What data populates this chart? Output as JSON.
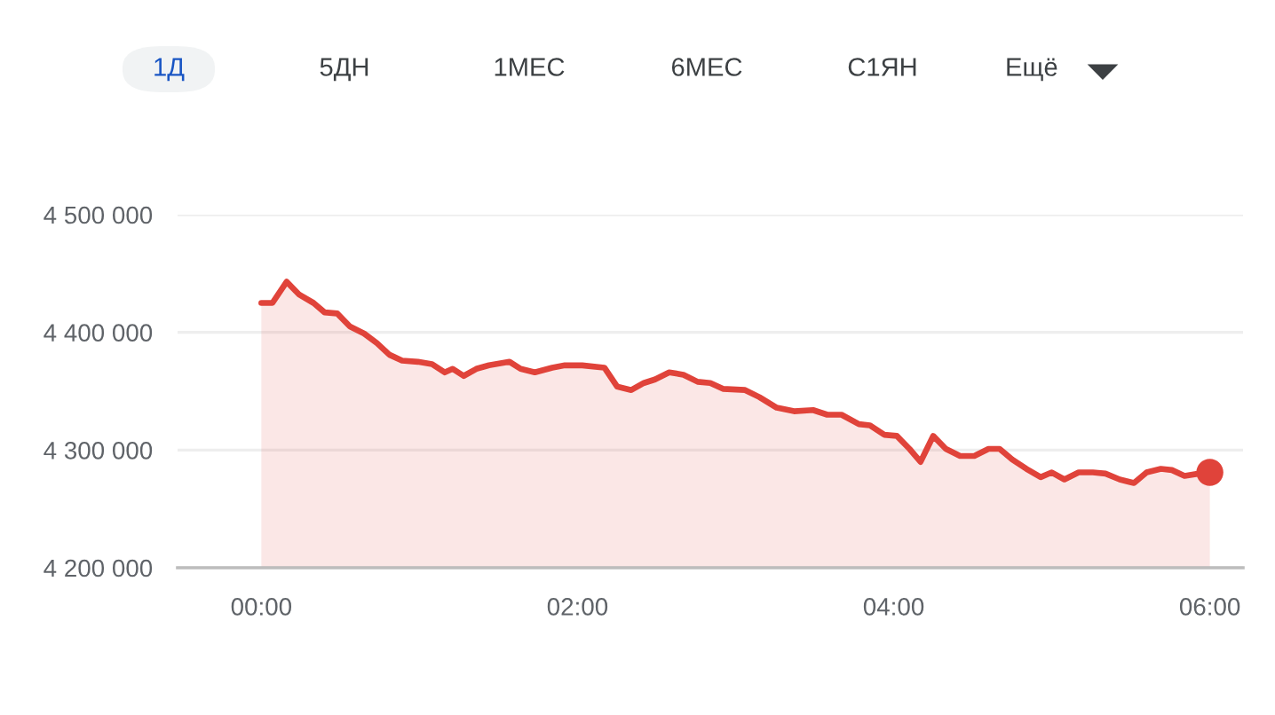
{
  "chart_data": {
    "type": "area",
    "annotations": [
      "1Д",
      "5ДН",
      "1МЕС",
      "6МЕС",
      "С1ЯН",
      "Ещё"
    ],
    "series": [
      {
        "color": "#e0433a",
        "x": [
          0,
          0.07,
          0.16,
          0.24,
          0.33,
          0.4,
          0.48,
          0.56,
          0.65,
          0.73,
          0.81,
          0.89,
          0.99,
          1.08,
          1.16,
          1.21,
          1.28,
          1.36,
          1.44,
          1.57,
          1.64,
          1.73,
          1.84,
          1.92,
          2.03,
          2.17,
          2.25,
          2.34,
          2.42,
          2.49,
          2.58,
          2.67,
          2.76,
          2.84,
          2.92,
          3.06,
          3.15,
          3.26,
          3.37,
          3.49,
          3.58,
          3.67,
          3.78,
          3.85,
          3.94,
          4.02,
          4.1,
          4.17,
          4.25,
          4.33,
          4.42,
          4.51,
          4.6,
          4.67,
          4.75,
          4.84,
          4.93,
          5.0,
          5.08,
          5.17,
          5.26,
          5.34,
          5.43,
          5.52,
          5.6,
          5.69,
          5.76,
          5.84,
          5.93,
          6.0
        ],
        "values": [
          4425000,
          4425000,
          4443000,
          4432000,
          4425000,
          4417000,
          4416000,
          4405000,
          4399000,
          4391000,
          4381000,
          4376000,
          4375000,
          4373000,
          4366000,
          4369000,
          4363000,
          4369000,
          4372000,
          4375000,
          4369000,
          4366000,
          4370000,
          4372000,
          4372000,
          4370000,
          4354000,
          4351000,
          4357000,
          4360000,
          4366000,
          4364000,
          4358000,
          4357000,
          4352000,
          4351000,
          4345000,
          4336000,
          4333000,
          4334000,
          4330000,
          4330000,
          4322000,
          4321000,
          4313000,
          4312000,
          4301000,
          4290000,
          4312000,
          4301000,
          4295000,
          4295000,
          4301000,
          4301000,
          4292000,
          4284000,
          4277000,
          4281000,
          4275000,
          4281000,
          4281000,
          4280000,
          4275000,
          4272000,
          4281000,
          4284000,
          4283000,
          4278000,
          4280000,
          4281000
        ]
      },
      {
        "type": "scatter",
        "color": "#e0433a",
        "marker": "circle",
        "x": [
          6.0
        ],
        "values": [
          4281000
        ]
      }
    ],
    "xlim": [
      -0.53,
      6.21
    ],
    "xticks": [
      {
        "value": 0,
        "label": "00:00"
      },
      {
        "value": 2,
        "label": "02:00"
      },
      {
        "value": 4,
        "label": "04:00"
      },
      {
        "value": 6,
        "label": "06:00"
      }
    ],
    "ylim": [
      4200000,
      4500000
    ],
    "yticks": [
      {
        "value": 4200000,
        "label": "4 200 000"
      },
      {
        "value": 4300000,
        "label": "4 300 000"
      },
      {
        "value": 4400000,
        "label": "4 400 000"
      },
      {
        "value": 4500000,
        "label": "4 500 000"
      }
    ],
    "grid": "y",
    "legend": false,
    "marker": "none",
    "line_style": "solid"
  }
}
